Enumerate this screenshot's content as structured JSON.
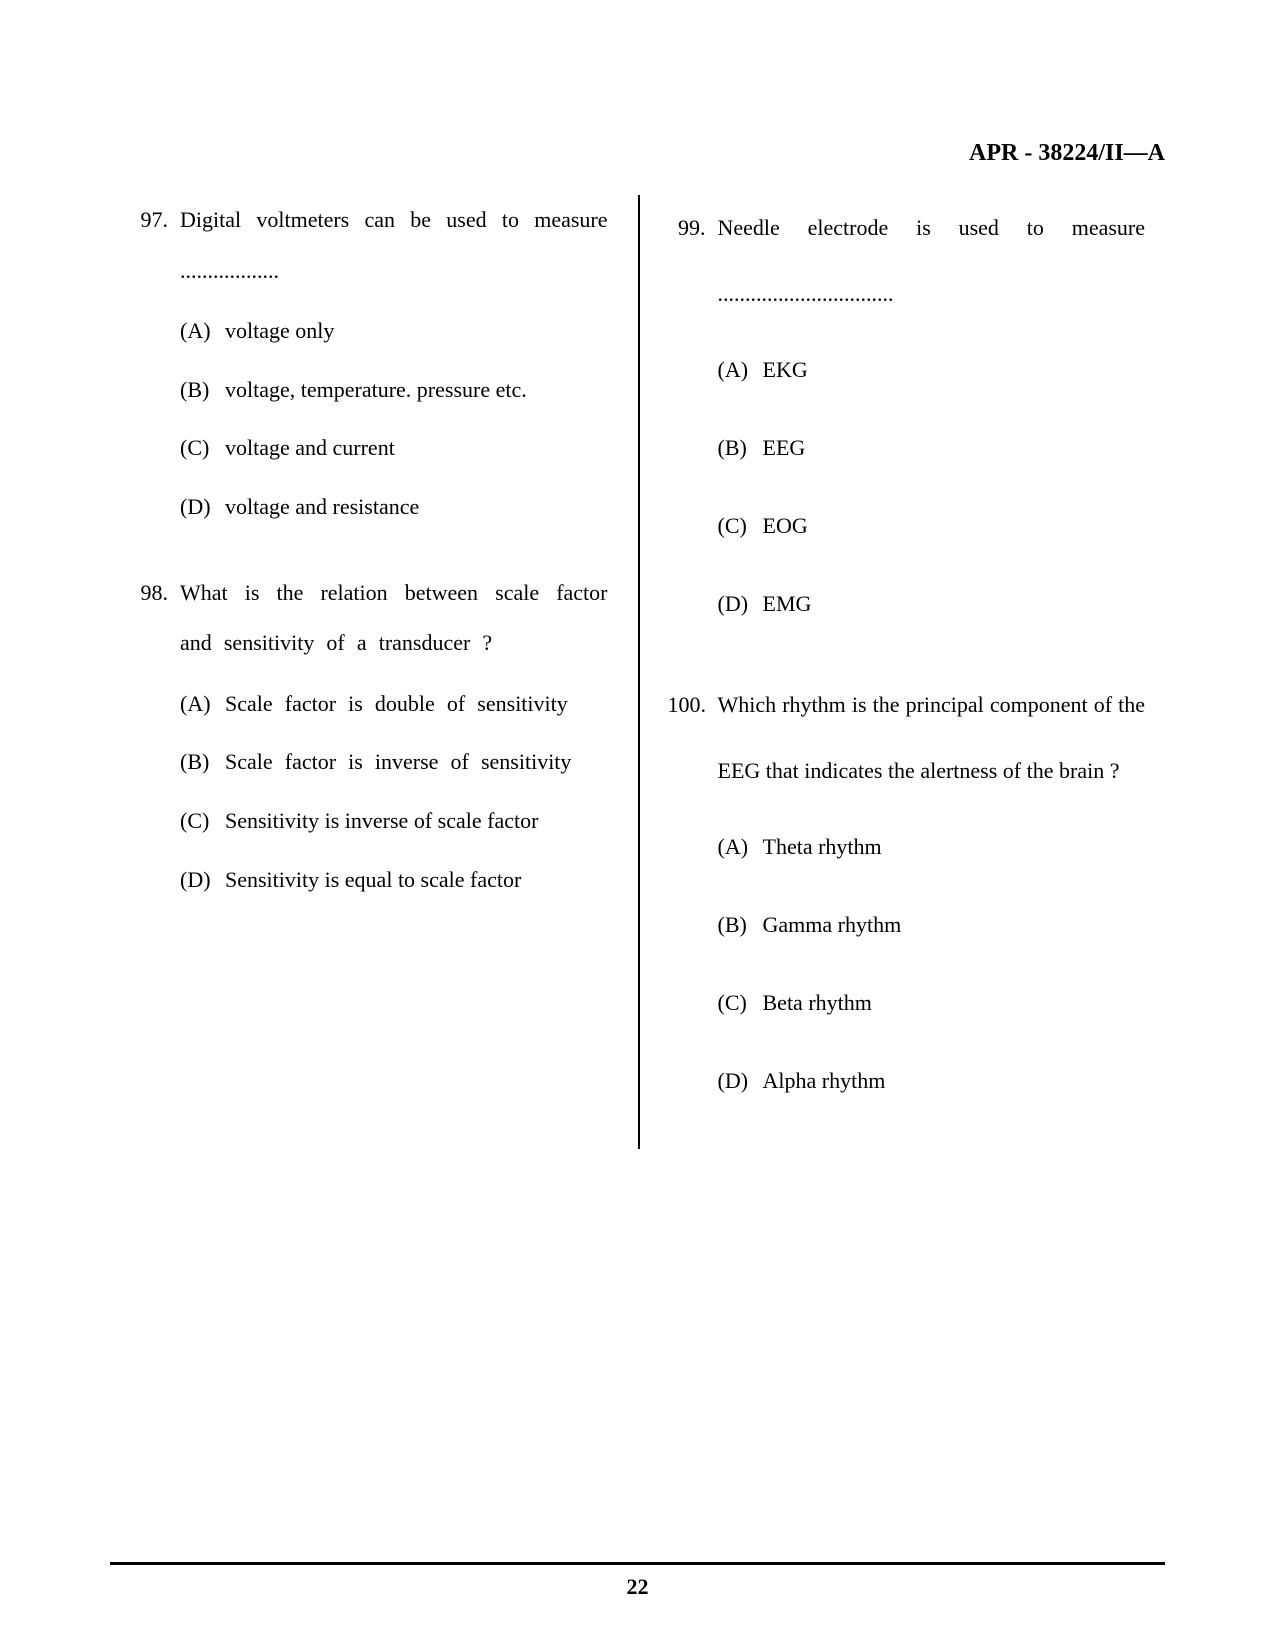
{
  "header": "APR - 38224/II—A",
  "page_number": "22",
  "text_color": "#000000",
  "background_color": "#ffffff",
  "font_family": "Georgia, Times New Roman, serif",
  "base_font_size": 22,
  "header_font_size": 24,
  "left_column": {
    "questions": [
      {
        "number": "97.",
        "text": "Digital voltmeters can be used to measure ..................",
        "options": [
          {
            "label": "(A)",
            "text": "voltage only"
          },
          {
            "label": "(B)",
            "text": "voltage, temperature. pressure etc."
          },
          {
            "label": "(C)",
            "text": "voltage and current"
          },
          {
            "label": "(D)",
            "text": "voltage and resistance"
          }
        ]
      },
      {
        "number": "98.",
        "text": "What is the relation between scale factor and sensitivity of a transducer ?",
        "options": [
          {
            "label": "(A)",
            "text": "Scale factor is double of sensitivity"
          },
          {
            "label": "(B)",
            "text": "Scale factor is inverse of sensitivity"
          },
          {
            "label": "(C)",
            "text": "Sensitivity is inverse of scale factor"
          },
          {
            "label": "(D)",
            "text": "Sensitivity is equal to scale factor"
          }
        ]
      }
    ]
  },
  "right_column": {
    "questions": [
      {
        "number": "99.",
        "text": "Needle electrode is used to measure ................................",
        "options": [
          {
            "label": "(A)",
            "text": "EKG"
          },
          {
            "label": "(B)",
            "text": "EEG"
          },
          {
            "label": "(C)",
            "text": "EOG"
          },
          {
            "label": "(D)",
            "text": "EMG"
          }
        ]
      },
      {
        "number": "100.",
        "text": "Which rhythm is the principal component of the EEG that indicates the alertness of the brain ?",
        "options": [
          {
            "label": "(A)",
            "text": "Theta rhythm"
          },
          {
            "label": "(B)",
            "text": "Gamma rhythm"
          },
          {
            "label": "(C)",
            "text": "Beta rhythm"
          },
          {
            "label": "(D)",
            "text": "Alpha rhythm"
          }
        ]
      }
    ]
  }
}
